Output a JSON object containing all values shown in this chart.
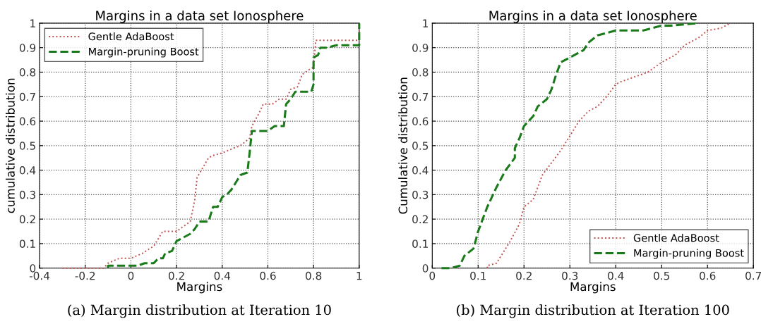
{
  "chart_data": [
    {
      "type": "line",
      "title": "Margins in a data set Ionosphere",
      "xlabel": "Margins",
      "ylabel": "cumulative distribution",
      "xlim": [
        -0.4,
        1
      ],
      "xticks": [
        -0.4,
        -0.2,
        0,
        0.2,
        0.4,
        0.6,
        0.8,
        1
      ],
      "ylim": [
        0,
        1
      ],
      "yticks": [
        0,
        0.1,
        0.2,
        0.3,
        0.4,
        0.5,
        0.6,
        0.7,
        0.8,
        0.9,
        1
      ],
      "grid": true,
      "legend": "top left",
      "annotations": [
        "(a) Margin distribution at Iteration 10"
      ],
      "series": [
        {
          "name": "Gentle AdaBoost",
          "color": "#c0504d",
          "line_style": "dotted",
          "x": [
            -0.3,
            -0.12,
            -0.1,
            -0.05,
            0,
            0.05,
            0.1,
            0.14,
            0.2,
            0.26,
            0.28,
            0.29,
            0.34,
            0.36,
            0.4,
            0.45,
            0.48,
            0.52,
            0.53,
            0.56,
            0.58,
            0.62,
            0.65,
            0.68,
            0.7,
            0.73,
            0.75,
            0.78,
            0.8,
            0.81,
            1.0,
            1.0
          ],
          "values": [
            0,
            0,
            0.02,
            0.04,
            0.04,
            0.06,
            0.09,
            0.15,
            0.15,
            0.19,
            0.28,
            0.37,
            0.45,
            0.46,
            0.47,
            0.49,
            0.5,
            0.53,
            0.58,
            0.63,
            0.67,
            0.67,
            0.69,
            0.69,
            0.73,
            0.74,
            0.79,
            0.81,
            0.82,
            0.93,
            0.93,
            1.0
          ]
        },
        {
          "name": "Margin-pruning Boost",
          "color": "#1a7a1a",
          "line_style": "dashed",
          "x": [
            -0.1,
            -0.1,
            0.03,
            0.06,
            0.1,
            0.12,
            0.14,
            0.15,
            0.18,
            0.2,
            0.22,
            0.24,
            0.26,
            0.28,
            0.3,
            0.34,
            0.36,
            0.38,
            0.4,
            0.42,
            0.44,
            0.46,
            0.48,
            0.51,
            0.52,
            0.53,
            0.6,
            0.63,
            0.67,
            0.68,
            0.7,
            0.72,
            0.79,
            0.8,
            0.8,
            0.82,
            0.83,
            0.86,
            0.9,
            1.0,
            1.0
          ],
          "values": [
            0,
            0.01,
            0.01,
            0.02,
            0.02,
            0.04,
            0.04,
            0.06,
            0.07,
            0.11,
            0.12,
            0.13,
            0.14,
            0.16,
            0.19,
            0.19,
            0.25,
            0.25,
            0.29,
            0.3,
            0.32,
            0.35,
            0.38,
            0.39,
            0.47,
            0.56,
            0.56,
            0.58,
            0.58,
            0.67,
            0.69,
            0.72,
            0.72,
            0.75,
            0.86,
            0.87,
            0.9,
            0.9,
            0.91,
            0.91,
            1.0
          ]
        }
      ]
    },
    {
      "type": "line",
      "title": "Margins in a data set Ionosphere",
      "xlabel": "Margins",
      "ylabel": "Cumulative distribution",
      "xlim": [
        0,
        0.7
      ],
      "xticks": [
        0,
        0.1,
        0.2,
        0.3,
        0.4,
        0.5,
        0.6,
        0.7
      ],
      "ylim": [
        0,
        1
      ],
      "yticks": [
        0,
        0.1,
        0.2,
        0.3,
        0.4,
        0.5,
        0.6,
        0.7,
        0.8,
        0.9,
        1
      ],
      "grid": true,
      "legend": "bottom right",
      "annotations": [
        "(b) Margin distribution at Iteration 100"
      ],
      "series": [
        {
          "name": "Gentle AdaBoost",
          "color": "#c0504d",
          "line_style": "dotted",
          "x": [
            0.12,
            0.12,
            0.14,
            0.15,
            0.17,
            0.19,
            0.2,
            0.22,
            0.24,
            0.26,
            0.28,
            0.3,
            0.32,
            0.34,
            0.36,
            0.38,
            0.4,
            0.41,
            0.44,
            0.47,
            0.5,
            0.53,
            0.55,
            0.58,
            0.6,
            0.63,
            0.65
          ],
          "values": [
            0,
            0.01,
            0.02,
            0.05,
            0.11,
            0.18,
            0.25,
            0.28,
            0.38,
            0.43,
            0.48,
            0.54,
            0.6,
            0.64,
            0.66,
            0.7,
            0.75,
            0.76,
            0.78,
            0.8,
            0.84,
            0.87,
            0.91,
            0.94,
            0.97,
            0.98,
            1.0
          ]
        },
        {
          "name": "Margin-pruning Boost",
          "color": "#1a7a1a",
          "line_style": "dashed",
          "x": [
            0.02,
            0.04,
            0.06,
            0.07,
            0.09,
            0.1,
            0.12,
            0.14,
            0.16,
            0.18,
            0.18,
            0.19,
            0.2,
            0.22,
            0.23,
            0.25,
            0.26,
            0.27,
            0.28,
            0.3,
            0.33,
            0.34,
            0.36,
            0.38,
            0.4,
            0.46,
            0.48,
            0.5,
            0.52,
            0.58
          ],
          "values": [
            0,
            0,
            0.01,
            0.05,
            0.08,
            0.15,
            0.25,
            0.33,
            0.4,
            0.45,
            0.49,
            0.53,
            0.58,
            0.62,
            0.66,
            0.69,
            0.73,
            0.79,
            0.84,
            0.86,
            0.89,
            0.92,
            0.95,
            0.96,
            0.97,
            0.97,
            0.98,
            0.99,
            0.99,
            1.0
          ]
        }
      ]
    }
  ]
}
